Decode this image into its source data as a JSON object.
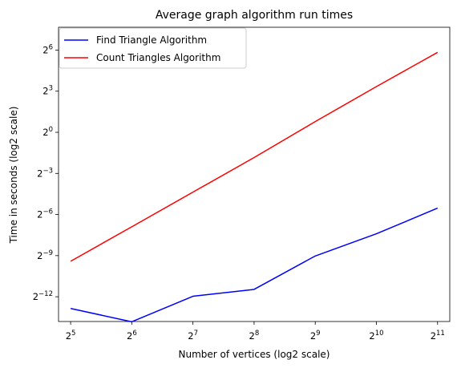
{
  "chart_data": {
    "type": "line",
    "title": "Average graph algorithm run times",
    "xlabel": "Number of vertices (log2 scale)",
    "ylabel": "Time in seconds (log2 scale)",
    "x_scale": "log2",
    "y_scale": "log2",
    "x": [
      32,
      64,
      128,
      256,
      512,
      1024,
      2048
    ],
    "x_ticks": [
      {
        "base": "2",
        "exp": "5"
      },
      {
        "base": "2",
        "exp": "6"
      },
      {
        "base": "2",
        "exp": "7"
      },
      {
        "base": "2",
        "exp": "8"
      },
      {
        "base": "2",
        "exp": "9"
      },
      {
        "base": "2",
        "exp": "10"
      },
      {
        "base": "2",
        "exp": "11"
      }
    ],
    "y_ticks": [
      {
        "base": "2",
        "exp": "−12"
      },
      {
        "base": "2",
        "exp": "−9"
      },
      {
        "base": "2",
        "exp": "−6"
      },
      {
        "base": "2",
        "exp": "−3"
      },
      {
        "base": "2",
        "exp": "0"
      },
      {
        "base": "2",
        "exp": "3"
      },
      {
        "base": "2",
        "exp": "6"
      }
    ],
    "xlim": [
      27.9,
      2352
    ],
    "ylim": [
      6.98e-05,
      203
    ],
    "grid": false,
    "legend_position": "top-left",
    "series": [
      {
        "name": "Find Triangle Algorithm",
        "color": "#0000ff",
        "values": [
          0.000135,
          6.88e-05,
          0.00025,
          0.000354,
          0.00192,
          0.0059,
          0.0216
        ]
      },
      {
        "name": "Count Triangles Algorithm",
        "color": "#ff0000",
        "values": [
          0.00147,
          0.00841,
          0.0485,
          0.279,
          1.72,
          10.1,
          57.0
        ]
      }
    ]
  }
}
